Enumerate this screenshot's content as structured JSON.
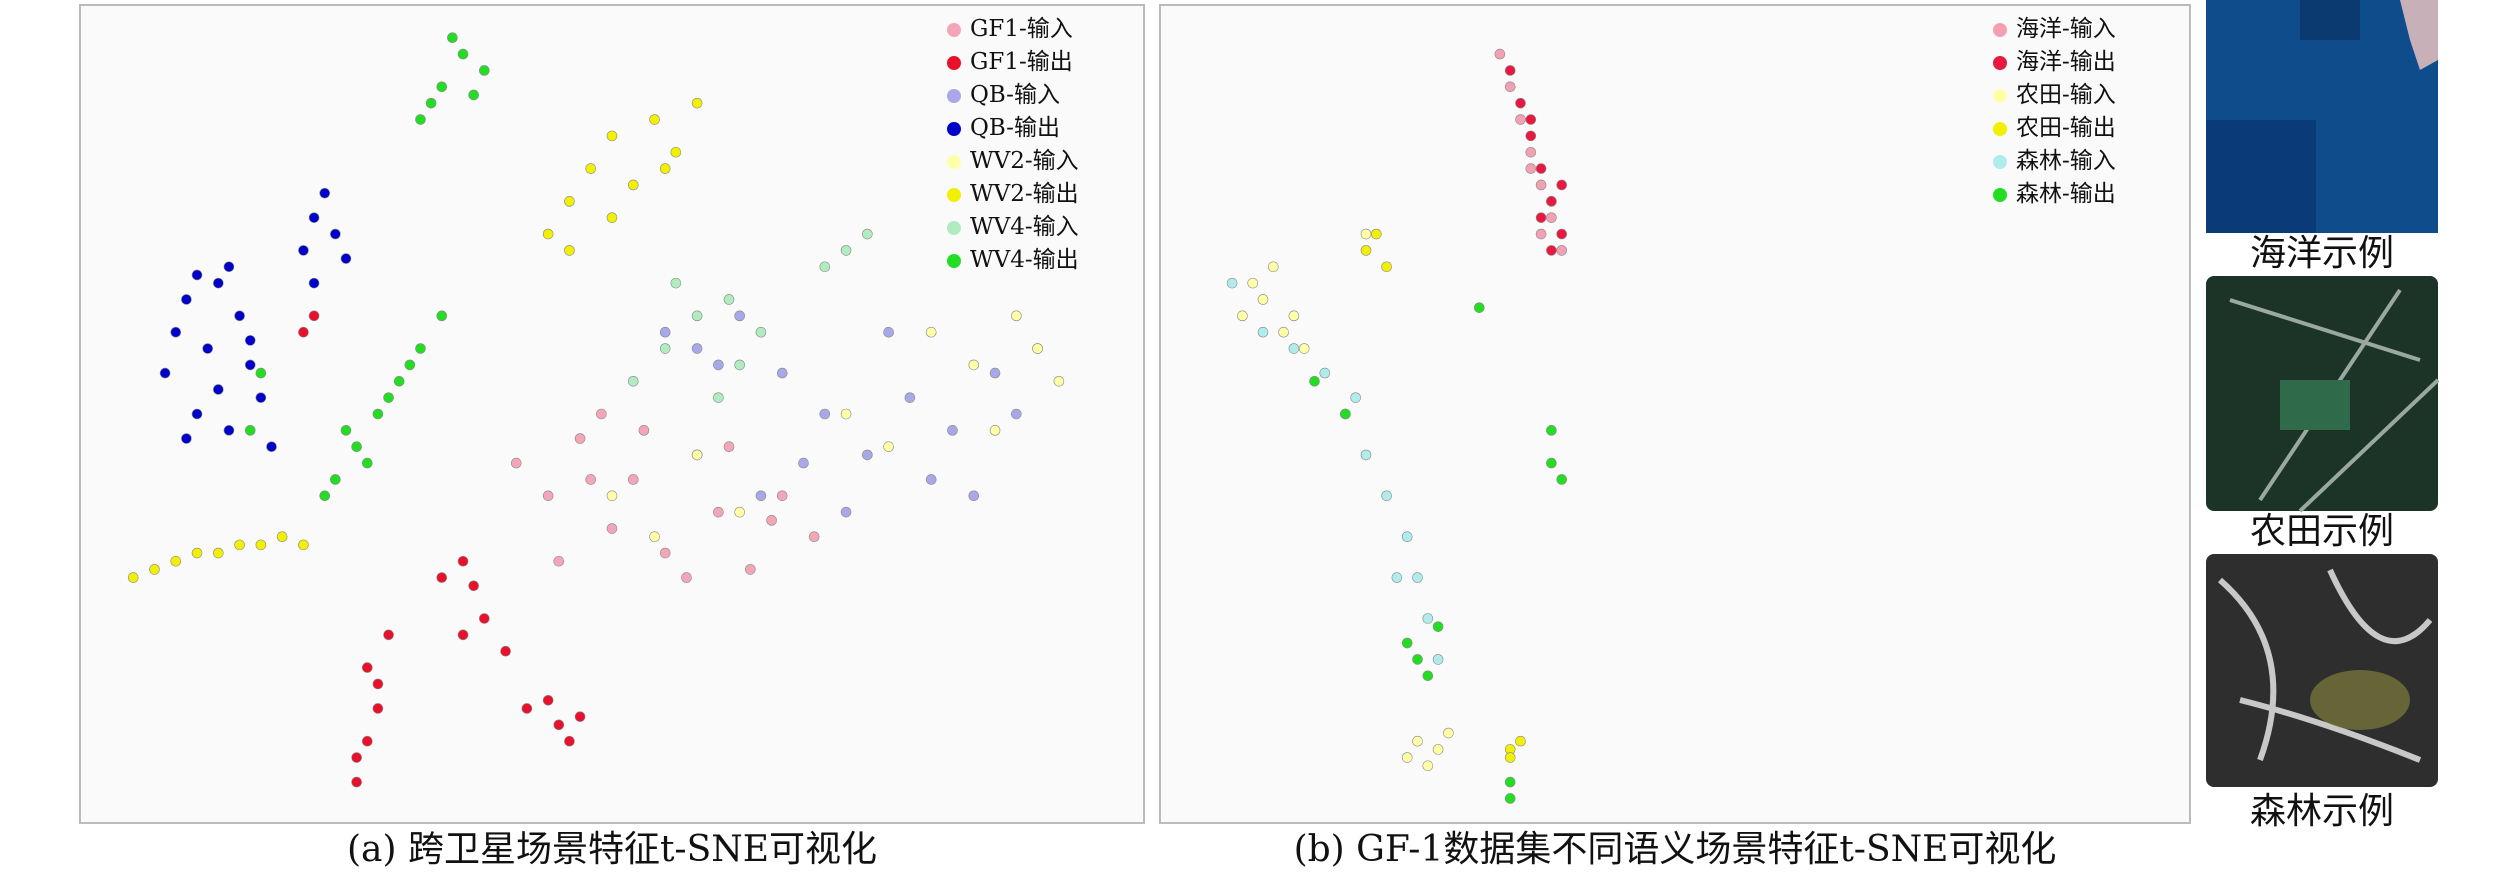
{
  "chart_data": [
    {
      "type": "scatter",
      "title": "(a) 跨卫星场景特征t-SNE可视化",
      "xlim": [
        0,
        100
      ],
      "ylim": [
        0,
        100
      ],
      "legend": "upper right",
      "series": [
        {
          "name": "GF1-输入",
          "color": "#f4a6b8",
          "x": [
            41,
            44,
            47,
            50,
            52,
            55,
            58,
            60,
            63,
            66,
            69,
            45,
            49,
            53,
            57,
            61,
            65,
            48
          ],
          "y": [
            44,
            40,
            47,
            36,
            42,
            33,
            45,
            38,
            31,
            40,
            35,
            32,
            50,
            48,
            30,
            46,
            37,
            42
          ]
        },
        {
          "name": "GF1-输出",
          "color": "#e8102a",
          "x": [
            26,
            27,
            28,
            27,
            29,
            26,
            28,
            34,
            36,
            37,
            36,
            38,
            40,
            44,
            45,
            46,
            47,
            42,
            22,
            21
          ],
          "y": [
            5,
            10,
            14,
            19,
            23,
            8,
            17,
            30,
            32,
            29,
            23,
            25,
            21,
            15,
            12,
            10,
            13,
            14,
            62,
            60
          ]
        },
        {
          "name": "QB-输入",
          "color": "#a8a8e8",
          "x": [
            55,
            58,
            62,
            66,
            70,
            74,
            78,
            82,
            86,
            90,
            76,
            80,
            84,
            68,
            72,
            88,
            64,
            60
          ],
          "y": [
            60,
            58,
            62,
            55,
            50,
            45,
            52,
            48,
            55,
            58,
            60,
            42,
            40,
            44,
            38,
            50,
            40,
            56
          ]
        },
        {
          "name": "QB-输出",
          "color": "#0000c8",
          "x": [
            8,
            9,
            10,
            11,
            12,
            13,
            14,
            15,
            16,
            17,
            18,
            11,
            14,
            10,
            13,
            16,
            21,
            22,
            23,
            24,
            25,
            22
          ],
          "y": [
            55,
            60,
            64,
            50,
            58,
            66,
            48,
            62,
            56,
            52,
            46,
            67,
            68,
            47,
            53,
            59,
            70,
            74,
            77,
            72,
            69,
            66
          ]
        },
        {
          "name": "WV2-输入",
          "color": "#ffffa8",
          "x": [
            80,
            84,
            88,
            92,
            86,
            90,
            50,
            54,
            58,
            62,
            72,
            76
          ],
          "y": [
            60,
            56,
            62,
            54,
            48,
            58,
            40,
            35,
            45,
            38,
            50,
            46
          ]
        },
        {
          "name": "WV2-输出",
          "color": "#f0f000",
          "x": [
            44,
            46,
            48,
            50,
            52,
            54,
            56,
            58,
            46,
            50,
            55,
            5,
            7,
            9,
            11,
            13,
            15,
            17,
            19,
            21
          ],
          "y": [
            72,
            76,
            80,
            84,
            78,
            86,
            82,
            88,
            70,
            74,
            80,
            30,
            31,
            32,
            33,
            33,
            34,
            34,
            35,
            34
          ]
        },
        {
          "name": "WV4-输入",
          "color": "#b0ecc0",
          "x": [
            52,
            55,
            58,
            61,
            64,
            56,
            60,
            70,
            72,
            74,
            62
          ],
          "y": [
            54,
            58,
            62,
            64,
            60,
            66,
            52,
            68,
            70,
            72,
            56
          ]
        },
        {
          "name": "WV4-输出",
          "color": "#22dd22",
          "x": [
            32,
            34,
            36,
            38,
            33,
            37,
            35,
            24,
            26,
            28,
            30,
            32,
            34,
            27,
            31,
            23,
            25,
            29,
            16,
            17
          ],
          "y": [
            86,
            90,
            94,
            92,
            88,
            89,
            96,
            42,
            46,
            50,
            54,
            58,
            62,
            44,
            56,
            40,
            48,
            52,
            48,
            55
          ]
        }
      ]
    },
    {
      "type": "scatter",
      "title": "(b) GF-1数据集不同语义场景特征t-SNE可视化",
      "xlim": [
        0,
        100
      ],
      "ylim": [
        0,
        100
      ],
      "legend": "upper right",
      "series": [
        {
          "name": "海洋-输入",
          "color": "#f4a0b4",
          "x": [
            33,
            34,
            35,
            36,
            37,
            38,
            39,
            36,
            37,
            38
          ],
          "y": [
            94,
            90,
            86,
            82,
            78,
            74,
            70,
            80,
            72,
            76
          ]
        },
        {
          "name": "海洋-输出",
          "color": "#e81840",
          "x": [
            34,
            35,
            36,
            37,
            38,
            39,
            38,
            36,
            37,
            39
          ],
          "y": [
            92,
            88,
            84,
            80,
            76,
            72,
            70,
            86,
            74,
            78
          ]
        },
        {
          "name": "农田-输入",
          "color": "#ffffa8",
          "x": [
            8,
            10,
            12,
            14,
            9,
            13,
            24,
            25,
            26,
            27,
            28,
            11,
            20
          ],
          "y": [
            62,
            64,
            60,
            58,
            66,
            62,
            8,
            10,
            7,
            9,
            11,
            68,
            72
          ]
        },
        {
          "name": "农田-输出",
          "color": "#f0f000",
          "x": [
            20,
            21,
            22,
            34,
            34,
            35
          ],
          "y": [
            70,
            72,
            68,
            9,
            8,
            10
          ]
        },
        {
          "name": "森林-输入",
          "color": "#b0ecec",
          "x": [
            7,
            10,
            13,
            16,
            18,
            20,
            22,
            24,
            25,
            26,
            27,
            23,
            19
          ],
          "y": [
            66,
            60,
            58,
            55,
            50,
            45,
            40,
            35,
            30,
            25,
            20,
            30,
            52
          ]
        },
        {
          "name": "森林-输出",
          "color": "#22dd22",
          "x": [
            15,
            18,
            24,
            25,
            26,
            27,
            38,
            38,
            39,
            34,
            34,
            31
          ],
          "y": [
            54,
            50,
            22,
            20,
            18,
            24,
            44,
            48,
            42,
            5,
            3,
            63
          ]
        }
      ]
    }
  ],
  "examples": [
    {
      "caption": "海洋示例"
    },
    {
      "caption": "农田示例"
    },
    {
      "caption": "森林示例"
    }
  ]
}
